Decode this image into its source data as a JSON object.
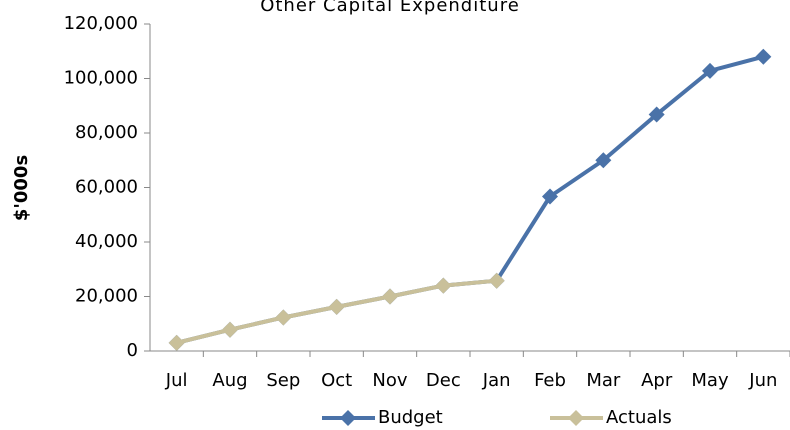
{
  "chart_data": {
    "type": "line",
    "title": "Other Capital Expenditure",
    "y_label": "$'000s",
    "categories": [
      "Jul",
      "Aug",
      "Sep",
      "Oct",
      "Nov",
      "Dec",
      "Jan",
      "Feb",
      "Mar",
      "Apr",
      "May",
      "Jun"
    ],
    "series": [
      {
        "name": "Budget",
        "color": "#4a72a8",
        "values": [
          3000,
          7800,
          12300,
          16200,
          20000,
          24000,
          25800,
          56700,
          70000,
          86800,
          102800,
          108000
        ]
      },
      {
        "name": "Actuals",
        "color": "#c9c09a",
        "values": [
          3000,
          7800,
          12300,
          16200,
          20000,
          24000,
          25800,
          null,
          null,
          null,
          null,
          null
        ]
      }
    ],
    "ylim": [
      0,
      120000
    ],
    "yticks": [
      0,
      {
        "value": 20000,
        "label": "20,000"
      },
      {
        "value": 40000,
        "label": "40,000"
      },
      {
        "value": 60000,
        "label": "60,000"
      },
      {
        "value": 80000,
        "label": "80,000"
      },
      {
        "value": 100000,
        "label": "100,000"
      },
      {
        "value": 120000,
        "label": "120,000"
      }
    ],
    "grid": false,
    "legend": "bottom"
  }
}
